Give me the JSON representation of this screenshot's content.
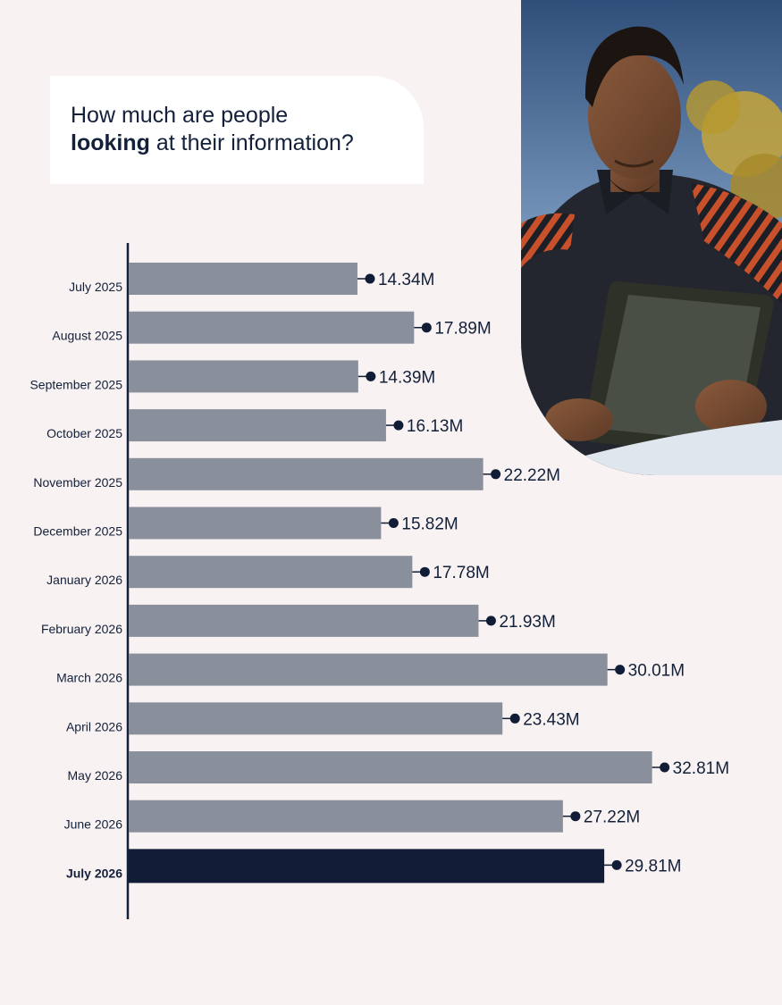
{
  "title": {
    "line1": "How much are people",
    "line2_bold": "looking",
    "line2_rest": " at their information?"
  },
  "photo": {
    "subject": "man looking at a tablet outdoors"
  },
  "colors": {
    "background": "#f8f2f3",
    "bar": "#8a909b",
    "bar_highlight": "#111c36",
    "text": "#12203a",
    "marker": "#111c36"
  },
  "chart_data": {
    "type": "bar",
    "orientation": "horizontal",
    "title": "",
    "xlabel": "",
    "ylabel": "",
    "xlim": [
      0,
      36
    ],
    "grid": false,
    "categories": [
      "July 2025",
      "August 2025",
      "September 2025",
      "October 2025",
      "November 2025",
      "December 2025",
      "January 2026",
      "February 2026",
      "March 2026",
      "April 2026",
      "May 2026",
      "June 2026",
      "July 2026"
    ],
    "values": [
      14.34,
      17.89,
      14.39,
      16.13,
      22.22,
      15.82,
      17.78,
      21.93,
      30.01,
      23.43,
      32.81,
      27.22,
      29.81
    ],
    "value_labels": [
      "14.34M",
      "17.89M",
      "14.39M",
      "16.13M",
      "22.22M",
      "15.82M",
      "17.78M",
      "21.93M",
      "30.01M",
      "23.43M",
      "32.81M",
      "27.22M",
      "29.81M"
    ],
    "highlight_category": "July 2026"
  }
}
